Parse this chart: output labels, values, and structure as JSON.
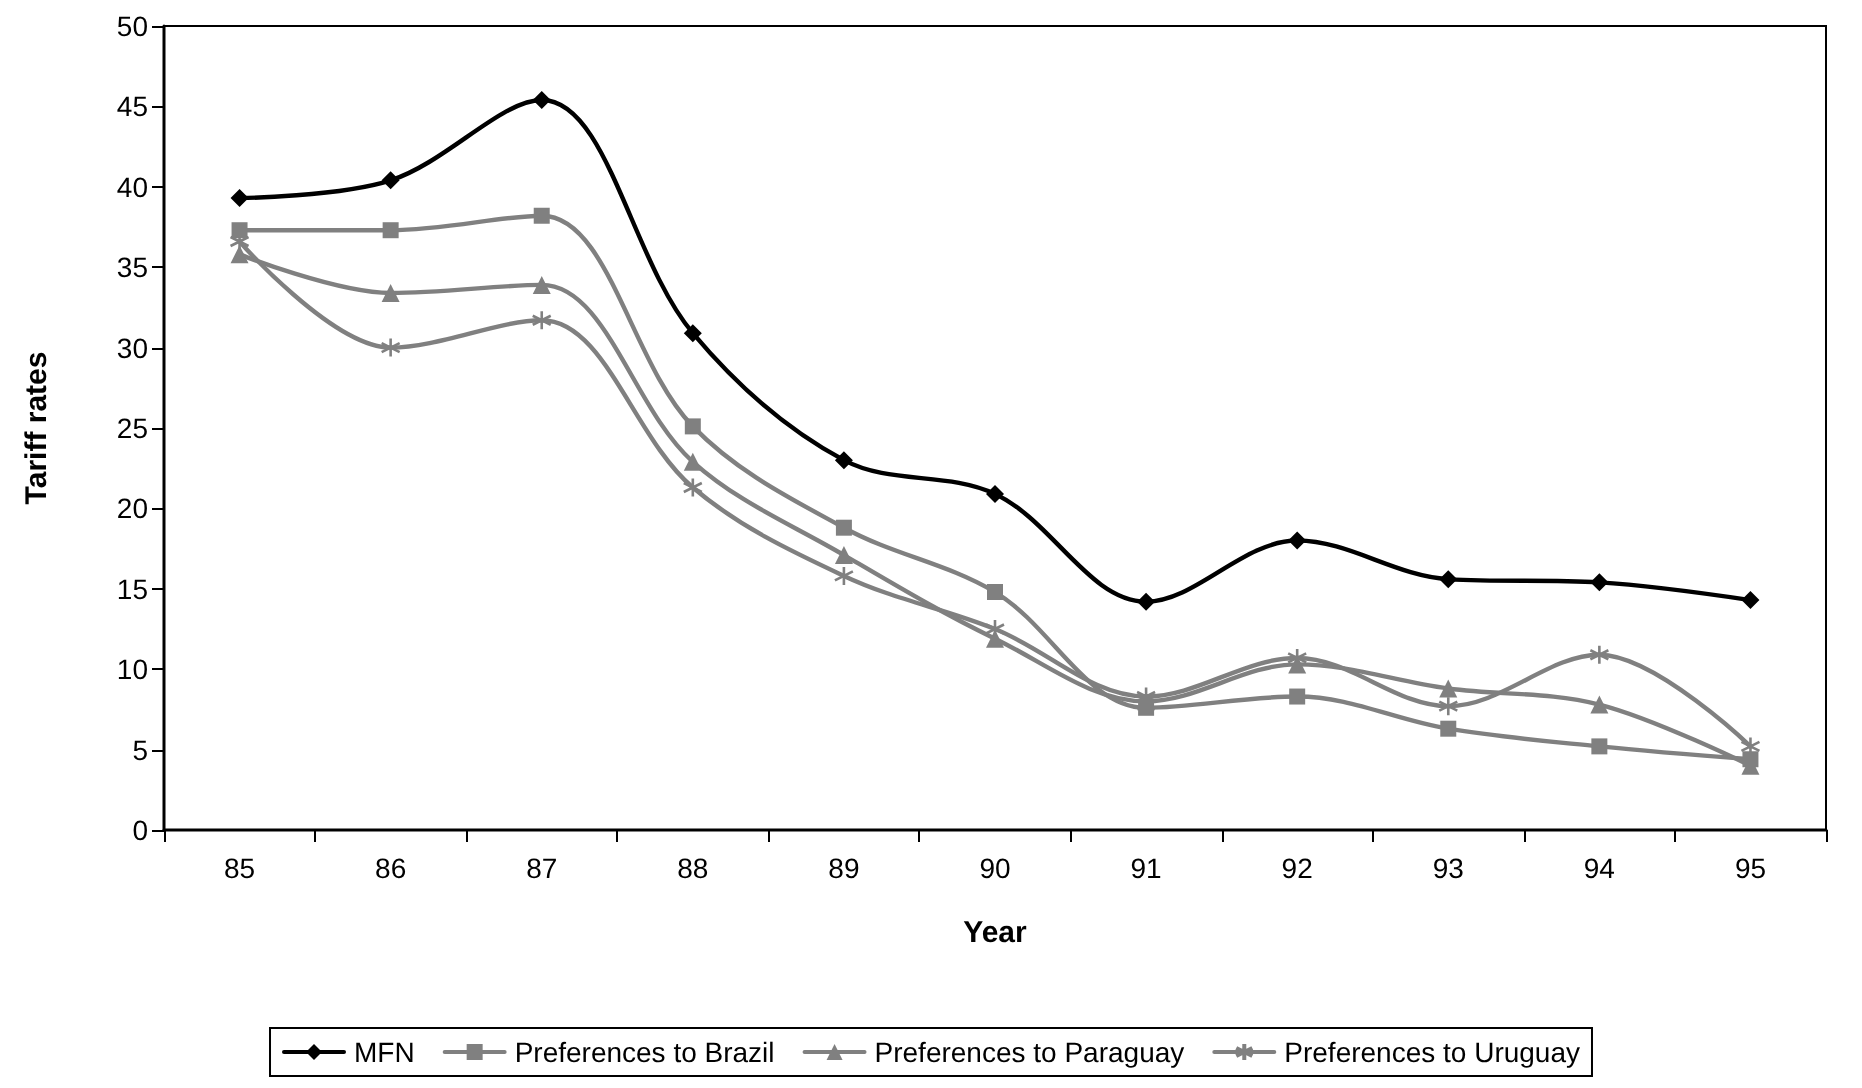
{
  "chart_data": {
    "type": "line",
    "xlabel": "Year",
    "ylabel": "Tariff rates",
    "categories": [
      "85",
      "86",
      "87",
      "88",
      "89",
      "90",
      "91",
      "92",
      "93",
      "94",
      "95"
    ],
    "series": [
      {
        "name": "MFN",
        "color": "#000000",
        "marker": "diamond",
        "values": [
          39.3,
          40.4,
          45.4,
          30.9,
          23.0,
          20.9,
          14.2,
          18.0,
          15.6,
          15.4,
          14.3
        ]
      },
      {
        "name": "Preferences to Brazil",
        "color": "#808080",
        "marker": "square",
        "values": [
          37.3,
          37.3,
          38.2,
          25.1,
          18.8,
          14.8,
          7.6,
          8.3,
          6.3,
          5.2,
          4.4
        ]
      },
      {
        "name": "Preferences to Paraguay",
        "color": "#808080",
        "marker": "triangle",
        "values": [
          35.8,
          33.4,
          33.9,
          22.9,
          17.1,
          11.9,
          8.0,
          10.3,
          8.8,
          7.8,
          4.0
        ]
      },
      {
        "name": "Preferences to Uruguay",
        "color": "#808080",
        "marker": "cross",
        "values": [
          36.6,
          30.0,
          31.7,
          21.3,
          15.8,
          12.5,
          8.3,
          10.7,
          7.7,
          10.9,
          5.2
        ]
      }
    ],
    "ylim": [
      0,
      50
    ],
    "yticks": [
      0,
      5,
      10,
      15,
      20,
      25,
      30,
      35,
      40,
      45,
      50
    ],
    "grid": false,
    "legend": "bottom",
    "line_style": "solid"
  }
}
